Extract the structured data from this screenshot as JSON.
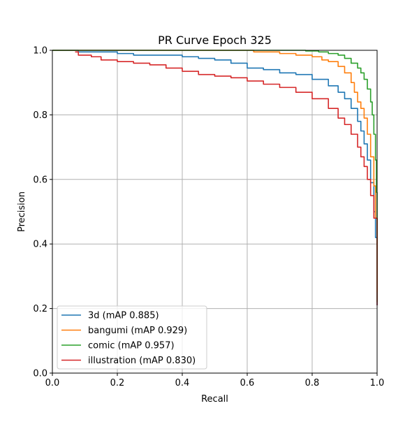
{
  "chart_data": {
    "type": "line",
    "title": "PR Curve Epoch 325",
    "xlabel": "Recall",
    "ylabel": "Precision",
    "xlim": [
      0.0,
      1.0
    ],
    "ylim": [
      0.0,
      1.0
    ],
    "grid": true,
    "legend_position": "lower-left",
    "x_ticks": [
      0.0,
      0.2,
      0.4,
      0.6,
      0.8,
      1.0
    ],
    "y_ticks": [
      0.0,
      0.2,
      0.4,
      0.6,
      0.8,
      1.0
    ],
    "x_tick_labels": [
      "0.0",
      "0.2",
      "0.4",
      "0.6",
      "0.8",
      "1.0"
    ],
    "y_tick_labels": [
      "0.0",
      "0.2",
      "0.4",
      "0.6",
      "0.8",
      "1.0"
    ],
    "series": [
      {
        "name": "3d (mAP 0.885)",
        "color": "#1f77b4",
        "points": [
          [
            0.0,
            1.0
          ],
          [
            0.07,
            1.0
          ],
          [
            0.08,
            0.995
          ],
          [
            0.15,
            0.995
          ],
          [
            0.2,
            0.99
          ],
          [
            0.25,
            0.985
          ],
          [
            0.3,
            0.985
          ],
          [
            0.36,
            0.985
          ],
          [
            0.4,
            0.98
          ],
          [
            0.45,
            0.975
          ],
          [
            0.5,
            0.97
          ],
          [
            0.55,
            0.96
          ],
          [
            0.6,
            0.945
          ],
          [
            0.65,
            0.94
          ],
          [
            0.7,
            0.93
          ],
          [
            0.75,
            0.925
          ],
          [
            0.8,
            0.91
          ],
          [
            0.85,
            0.89
          ],
          [
            0.88,
            0.87
          ],
          [
            0.9,
            0.85
          ],
          [
            0.92,
            0.82
          ],
          [
            0.94,
            0.78
          ],
          [
            0.95,
            0.75
          ],
          [
            0.96,
            0.71
          ],
          [
            0.97,
            0.66
          ],
          [
            0.98,
            0.59
          ],
          [
            0.99,
            0.5
          ],
          [
            0.995,
            0.42
          ],
          [
            1.0,
            0.33
          ],
          [
            1.0,
            0.21
          ]
        ]
      },
      {
        "name": "bangumi (mAP 0.929)",
        "color": "#ff7f0e",
        "points": [
          [
            0.0,
            1.0
          ],
          [
            0.6,
            1.0
          ],
          [
            0.62,
            0.995
          ],
          [
            0.7,
            0.99
          ],
          [
            0.75,
            0.985
          ],
          [
            0.8,
            0.98
          ],
          [
            0.83,
            0.97
          ],
          [
            0.85,
            0.965
          ],
          [
            0.88,
            0.95
          ],
          [
            0.9,
            0.93
          ],
          [
            0.92,
            0.9
          ],
          [
            0.93,
            0.87
          ],
          [
            0.94,
            0.84
          ],
          [
            0.95,
            0.82
          ],
          [
            0.96,
            0.79
          ],
          [
            0.97,
            0.74
          ],
          [
            0.98,
            0.67
          ],
          [
            0.99,
            0.58
          ],
          [
            0.995,
            0.48
          ],
          [
            1.0,
            0.38
          ],
          [
            1.0,
            0.25
          ]
        ]
      },
      {
        "name": "comic (mAP 0.957)",
        "color": "#2ca02c",
        "points": [
          [
            0.0,
            1.0
          ],
          [
            0.72,
            1.0
          ],
          [
            0.78,
            0.998
          ],
          [
            0.82,
            0.995
          ],
          [
            0.85,
            0.99
          ],
          [
            0.88,
            0.985
          ],
          [
            0.9,
            0.975
          ],
          [
            0.92,
            0.96
          ],
          [
            0.94,
            0.945
          ],
          [
            0.95,
            0.93
          ],
          [
            0.96,
            0.91
          ],
          [
            0.97,
            0.88
          ],
          [
            0.98,
            0.84
          ],
          [
            0.985,
            0.8
          ],
          [
            0.99,
            0.74
          ],
          [
            0.995,
            0.66
          ],
          [
            0.998,
            0.56
          ],
          [
            1.0,
            0.46
          ],
          [
            1.0,
            0.22
          ]
        ]
      },
      {
        "name": "illustration (mAP 0.830)",
        "color": "#d62728",
        "points": [
          [
            0.07,
            0.995
          ],
          [
            0.08,
            0.985
          ],
          [
            0.12,
            0.98
          ],
          [
            0.15,
            0.97
          ],
          [
            0.2,
            0.965
          ],
          [
            0.25,
            0.96
          ],
          [
            0.3,
            0.955
          ],
          [
            0.35,
            0.945
          ],
          [
            0.4,
            0.935
          ],
          [
            0.45,
            0.925
          ],
          [
            0.5,
            0.92
          ],
          [
            0.55,
            0.915
          ],
          [
            0.6,
            0.905
          ],
          [
            0.65,
            0.895
          ],
          [
            0.7,
            0.885
          ],
          [
            0.75,
            0.87
          ],
          [
            0.8,
            0.85
          ],
          [
            0.85,
            0.82
          ],
          [
            0.88,
            0.79
          ],
          [
            0.9,
            0.77
          ],
          [
            0.92,
            0.74
          ],
          [
            0.94,
            0.7
          ],
          [
            0.95,
            0.67
          ],
          [
            0.96,
            0.64
          ],
          [
            0.97,
            0.6
          ],
          [
            0.98,
            0.55
          ],
          [
            0.99,
            0.48
          ],
          [
            1.0,
            0.42
          ],
          [
            1.0,
            0.21
          ]
        ]
      }
    ]
  }
}
